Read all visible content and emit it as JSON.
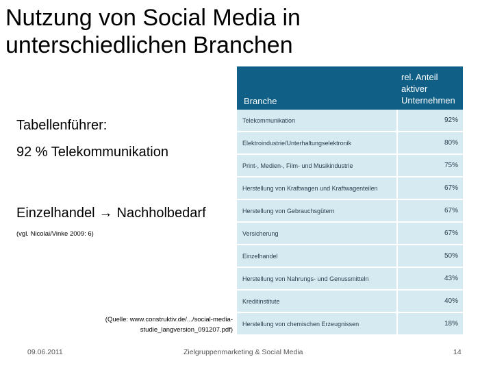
{
  "slide": {
    "title": "Nutzung von Social Media in unterschiedlichen Branchen",
    "lead": "Tabellenführer:",
    "bullet1": "92 % Telekommunikation",
    "bullet2_start": "Einzelhandel",
    "arrow_icon": "→",
    "bullet2_end": "Nachholbedarf",
    "citation": "(vgl. Nicolai/Vinke 2009: 6)",
    "source": "(Quelle: www.construktiv.de/.../social-media-studie_langversion_091207.pdf)"
  },
  "table": {
    "header_branche": "Branche",
    "header_anteil": "rel. Anteil aktiver Unternehmen",
    "rows": [
      {
        "branche": "Telekommunikation",
        "value": "92%"
      },
      {
        "branche": "Elektroindustrie/Unterhaltungselektronik",
        "value": "80%"
      },
      {
        "branche": "Print-, Medien-, Film- und Musikindustrie",
        "value": "75%"
      },
      {
        "branche": "Herstellung von Kraftwagen und Kraftwagenteilen",
        "value": "67%"
      },
      {
        "branche": "Herstellung von Gebrauchsgütern",
        "value": "67%"
      },
      {
        "branche": "Versicherung",
        "value": "67%"
      },
      {
        "branche": "Einzelhandel",
        "value": "50%"
      },
      {
        "branche": "Herstellung von Nahrungs- und Genussmitteln",
        "value": "43%"
      },
      {
        "branche": "Kreditinstitute",
        "value": "40%"
      },
      {
        "branche": "Herstellung von chemischen Erzeugnissen",
        "value": "18%"
      }
    ]
  },
  "footer": {
    "date": "09.06.2011",
    "center": "Zielgruppenmarketing & Social Media",
    "page": "14"
  }
}
